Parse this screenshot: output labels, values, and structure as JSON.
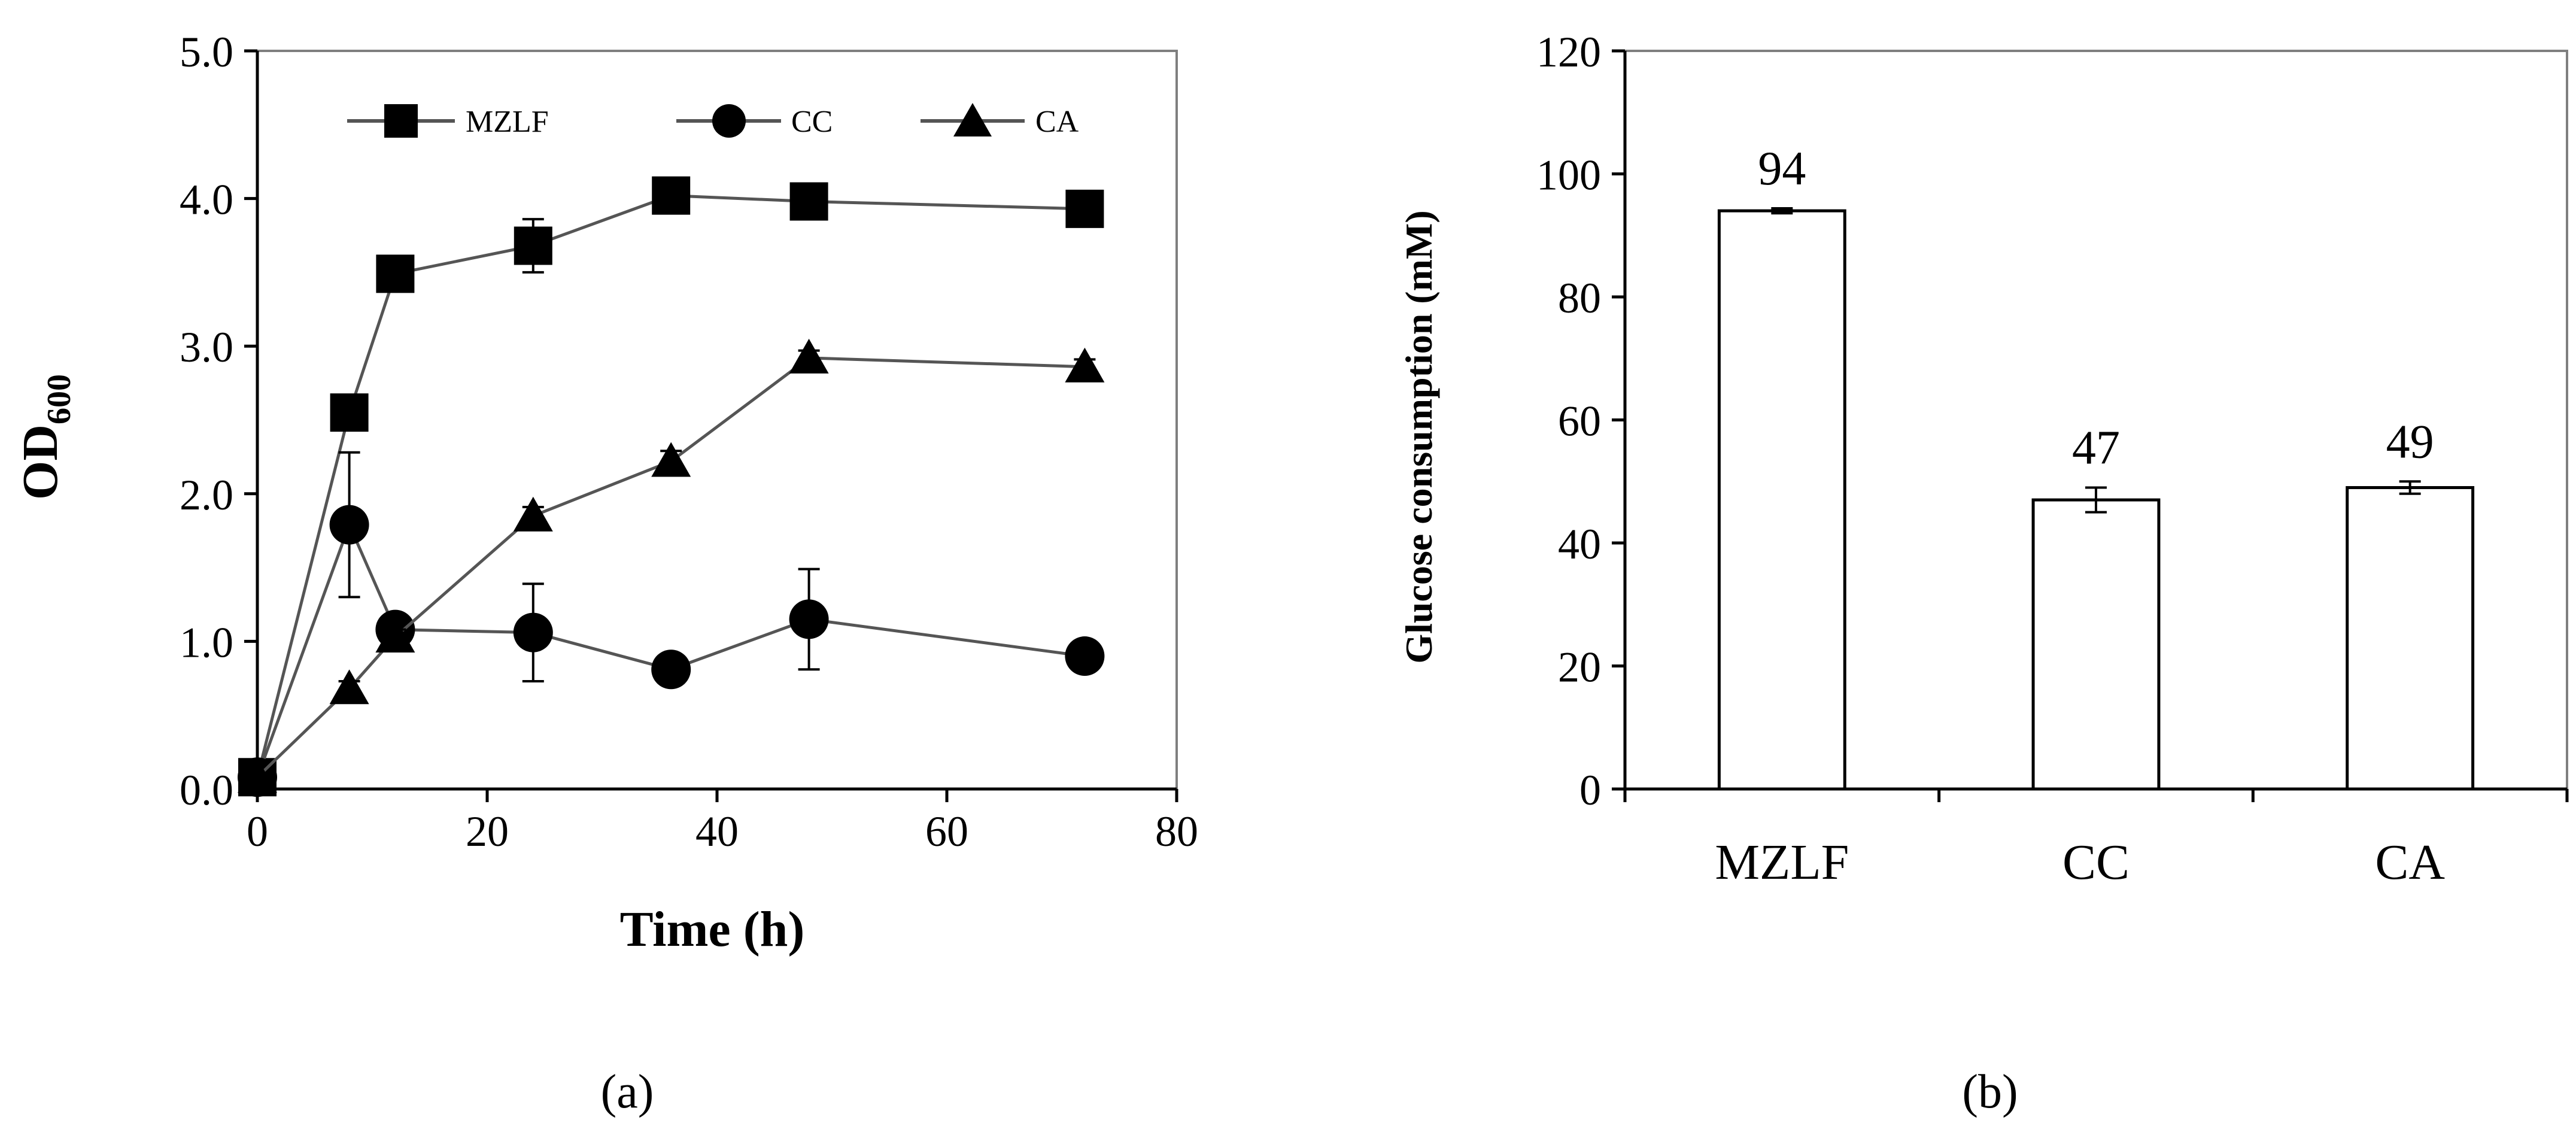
{
  "chart_data": [
    {
      "panel": "(a)",
      "type": "line",
      "xlabel": "Time (h)",
      "ylabel_main": "OD",
      "ylabel_sub": "600",
      "xlim": [
        0,
        80
      ],
      "ylim": [
        0.0,
        5.0
      ],
      "xticks": [
        0,
        20,
        40,
        60,
        80
      ],
      "yticks": [
        "0.0",
        "1.0",
        "2.0",
        "3.0",
        "4.0",
        "5.0"
      ],
      "grid": false,
      "legend_position": "top",
      "series": [
        {
          "name": "MZLF",
          "marker": "square",
          "points": [
            [
              0,
              0.08
            ],
            [
              8,
              2.55
            ],
            [
              12,
              3.49
            ],
            [
              24,
              3.68
            ],
            [
              36,
              4.02
            ],
            [
              48,
              3.98
            ],
            [
              72,
              3.93
            ]
          ],
          "errors": [
            0.03,
            0.08,
            0.06,
            0.18,
            0.08,
            0.06,
            0.04
          ]
        },
        {
          "name": "CC",
          "marker": "circle",
          "points": [
            [
              0,
              0.08
            ],
            [
              8,
              1.79
            ],
            [
              12,
              1.08
            ],
            [
              24,
              1.06
            ],
            [
              36,
              0.81
            ],
            [
              48,
              1.15
            ],
            [
              72,
              0.9
            ]
          ],
          "errors": [
            0.03,
            0.49,
            0.05,
            0.33,
            0.04,
            0.34,
            0.04
          ]
        },
        {
          "name": "CA",
          "marker": "triangle",
          "points": [
            [
              0,
              0.08
            ],
            [
              8,
              0.68
            ],
            [
              12,
              1.03
            ],
            [
              24,
              1.85
            ],
            [
              36,
              2.22
            ],
            [
              48,
              2.92
            ],
            [
              72,
              2.86
            ]
          ],
          "errors": [
            0.03,
            0.05,
            0.05,
            0.06,
            0.07,
            0.05,
            0.05
          ]
        }
      ]
    },
    {
      "panel": "(b)",
      "type": "bar",
      "ylabel": "Glucose consumption  (mM)",
      "categories": [
        "MZLF",
        "CC",
        "CA"
      ],
      "values": [
        94,
        47,
        49
      ],
      "errors": [
        0.4,
        2.0,
        1.0
      ],
      "data_labels": [
        "94",
        "47",
        "49"
      ],
      "ylim": [
        0,
        120
      ],
      "yticks": [
        "0",
        "20",
        "40",
        "60",
        "80",
        "100",
        "120"
      ],
      "grid": false,
      "bar_fill": "#ffffff",
      "edge_color": "#000000"
    }
  ]
}
